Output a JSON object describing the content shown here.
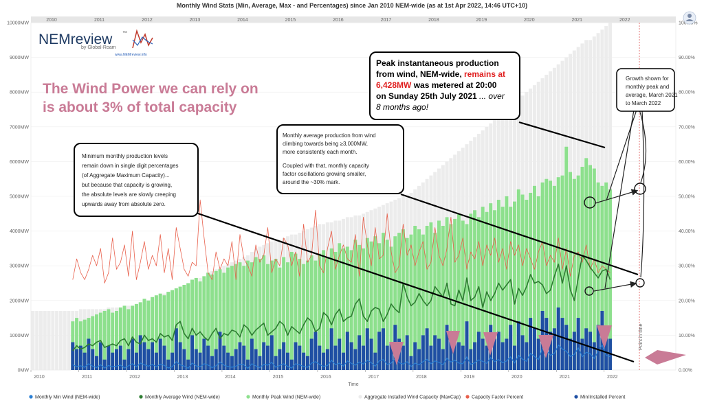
{
  "title": "Monthly Wind Stats (Min, Average, Max - and Percentages) since Jan 2010 NEM-wide (as at 1st Apr 2022, 14:46 UTC+10)",
  "colors": {
    "min": "#2a7fd4",
    "avg": "#2e7d32",
    "peak": "#8de08d",
    "cap": "#ececec",
    "cf": "#e8604c",
    "minpct": "#1f4fa3",
    "callout_border": "#000000",
    "claim": "#c97b96",
    "arrow_pink": "#c97b96",
    "red_text": "#e02020"
  },
  "logo": {
    "brand": "NEMreview",
    "tm": "™",
    "by": "by Global-Roam",
    "link": "www.NEMreview.info"
  },
  "claim": {
    "line1": "The Wind Power we can rely on",
    "line2": "is about 3% of total capacity"
  },
  "callouts": {
    "peak": {
      "l1": "Peak instantaneous production",
      "l2a": "from wind, NEM-wide, ",
      "l2b": "remains at",
      "l3a": "6,428MW",
      "l3b": " was metered at 20:00",
      "l4a": "on Sunday 25th July 2021",
      "l4b": " ... over",
      "l5": "8 months ago!"
    },
    "growth": [
      "Growth shown for",
      "monthly peak and",
      "average, March 2021",
      "to March 2022"
    ],
    "min": [
      "Minimum monthly production levels",
      "remain down in single digit percentages",
      "(of Aggregate Maximum Capacity)...",
      "but because that capacity is growing,",
      "the absolute levels are slowly creeping",
      "upwards away from absolute zero."
    ],
    "avg": [
      "Monthly average production from wind",
      "climbing towards being ≥3,000MW,",
      "more consistently each month.",
      "",
      "Coupled with that, monthly capacity",
      "factor oscillations growing smaller,",
      "around the ~30% mark."
    ]
  },
  "now_label": "Point in time",
  "chart_data": {
    "type": "bar",
    "title": "Monthly Wind Stats (Min, Average, Max - and Percentages) since Jan 2010 NEM-wide (as at 1st Apr 2022, 14:46 UTC+10)",
    "xlabel": "Time",
    "ylabel": "",
    "x_start": "2010-01",
    "x_end": "2023-07",
    "x_ticks": [
      "2010",
      "2011",
      "2012",
      "2013",
      "2014",
      "2015",
      "2016",
      "2017",
      "2018",
      "2019",
      "2020",
      "2021",
      "2022"
    ],
    "ylim": [
      0,
      10000
    ],
    "y_ticks": [
      "0MW",
      "1000MW",
      "2000MW",
      "3000MW",
      "4000MW",
      "5000MW",
      "6000MW",
      "7000MW",
      "8000MW",
      "9000MW",
      "10000MW"
    ],
    "y2lim": [
      0,
      100
    ],
    "y2_ticks": [
      "0.00%",
      "10.00%",
      "20.00%",
      "30.00%",
      "40.00%",
      "50.00%",
      "60.00%",
      "70.00%",
      "80.00%",
      "90.00%",
      "100.00%"
    ],
    "legend_position": "bottom",
    "legend": [
      "Monthly Min Wind (NEM-wide)",
      "Monthly Average Wind (NEM-wide)",
      "Monthly Peak Wind (NEM-wide)",
      "Aggregate Installed Wind Capacity (MaxCap)",
      "Capacity Factor Percent",
      "Min/Installed Percent"
    ],
    "capacity": {
      "start": "2010-01",
      "values": [
        1700,
        1700,
        1700,
        1700,
        1700,
        1700,
        1700,
        1700,
        1700,
        1700,
        1700,
        1700,
        1750,
        1750,
        1750,
        1750,
        1750,
        1750,
        1750,
        1800,
        1800,
        1800,
        1800,
        1800,
        1850,
        1850,
        1900,
        1900,
        1950,
        2000,
        2050,
        2100,
        2150,
        2200,
        2250,
        2300,
        2350,
        2400,
        2450,
        2500,
        2550,
        2600,
        2650,
        2700,
        2800,
        2850,
        2900,
        2950,
        3000,
        3050,
        3100,
        3150,
        3200,
        3250,
        3300,
        3400,
        3500,
        3550,
        3600,
        3650,
        3700,
        3750,
        3750,
        3800,
        3850,
        3900,
        3900,
        3950,
        4000,
        4050,
        4100,
        4150,
        4200,
        4200,
        4250,
        4250,
        4300,
        4300,
        4350,
        4400,
        4400,
        4450,
        4450,
        4500,
        4550,
        4600,
        4650,
        4700,
        4750,
        4800,
        4850,
        4900,
        4950,
        5000,
        5050,
        5100,
        5200,
        5300,
        5400,
        5500,
        5600,
        5700,
        5800,
        5900,
        6000,
        6100,
        6200,
        6300,
        6400,
        6500,
        6600,
        6700,
        6800,
        6900,
        7000,
        7100,
        7200,
        7300,
        7400,
        7500,
        7600,
        7700,
        7800,
        7900,
        8000,
        8100,
        8200,
        8300,
        8400,
        8500,
        8600,
        8700,
        8800,
        8900,
        9000,
        9100,
        9200,
        9300,
        9400,
        9500,
        9500,
        9600,
        9700,
        9800,
        9900,
        10000
      ]
    },
    "peak": {
      "start": "2010-11",
      "values": [
        1400,
        1500,
        1400,
        1450,
        1500,
        1550,
        1600,
        1650,
        1700,
        1750,
        1650,
        1700,
        1800,
        1850,
        1750,
        1850,
        1900,
        1950,
        2050,
        2000,
        2100,
        2150,
        2200,
        2150,
        2250,
        2300,
        2350,
        2400,
        2450,
        2500,
        2600,
        2650,
        2550,
        2700,
        2800,
        2750,
        2850,
        2900,
        2800,
        2950,
        3000,
        3050,
        3100,
        3000,
        3150,
        3100,
        3250,
        3200,
        3300,
        3050,
        3150,
        3200,
        2950,
        3250,
        3100,
        3400,
        3350,
        3200,
        3050,
        3150,
        3300,
        3150,
        3350,
        3450,
        3250,
        3500,
        3400,
        3650,
        3500,
        3550,
        3450,
        3750,
        3600,
        3500,
        3800,
        3700,
        3850,
        3650,
        3950,
        3750,
        3550,
        3850,
        3950,
        4050,
        3800,
        3900,
        4150,
        4050,
        3900,
        4150,
        4250,
        3950,
        4300,
        4150,
        4400,
        4200,
        4350,
        4500,
        4300,
        4200,
        4500,
        4600,
        4400,
        4700,
        4550,
        4800,
        4600,
        4900,
        4700,
        5000,
        4700,
        4850,
        5200,
        5050,
        4900,
        5100,
        5300,
        5000,
        5400,
        5500,
        5450,
        5300,
        5550,
        5600,
        6428,
        5700,
        5500,
        5600,
        5850,
        6100,
        5900,
        5800,
        5400,
        5300,
        5400,
        5200
      ]
    },
    "average": {
      "start": "2010-11",
      "values": [
        550,
        700,
        600,
        650,
        750,
        700,
        800,
        850,
        650,
        700,
        750,
        700,
        850,
        900,
        700,
        950,
        800,
        750,
        1000,
        850,
        900,
        800,
        1050,
        950,
        1000,
        850,
        1300,
        1400,
        1050,
        900,
        1200,
        1000,
        1100,
        950,
        850,
        1050,
        1200,
        900,
        1050,
        1000,
        1150,
        1100,
        950,
        1300,
        1200,
        1000,
        1150,
        1250,
        1350,
        1000,
        1100,
        1200,
        1400,
        1300,
        1000,
        1250,
        1150,
        1050,
        1300,
        1500,
        1400,
        1100,
        1200,
        1650,
        1550,
        1300,
        1600,
        1750,
        1400,
        1500,
        1550,
        1900,
        2050,
        1550,
        1400,
        1700,
        1800,
        1750,
        1400,
        1600,
        1900,
        1750,
        1650,
        2500,
        2100,
        1850,
        1950,
        2200,
        2000,
        1850,
        2000,
        2400,
        2250,
        2100,
        2500,
        1900,
        1850,
        2300,
        2000,
        2650,
        2000,
        2100,
        2400,
        1800,
        2250,
        2000,
        2200,
        2500,
        2300,
        2450,
        2600,
        1900,
        2350,
        2150,
        2400,
        2750,
        2500,
        2550,
        2450,
        2200,
        2300,
        2700,
        3050,
        2500,
        3000,
        2300,
        2000,
        2650,
        3300,
        3150,
        2950,
        2800,
        2650,
        2850,
        2900,
        2600
      ]
    },
    "minimum": {
      "start": "2010-11",
      "values": [
        150,
        100,
        120,
        80,
        180,
        110,
        70,
        150,
        60,
        130,
        90,
        110,
        140,
        60,
        120,
        180,
        90,
        200,
        150,
        110,
        160,
        90,
        170,
        130,
        60,
        90,
        240,
        150,
        110,
        50,
        200,
        120,
        90,
        180,
        140,
        70,
        120,
        230,
        140,
        100,
        80,
        110,
        170,
        150,
        50,
        180,
        120,
        70,
        160,
        140,
        220,
        80,
        130,
        180,
        100,
        60,
        180,
        150,
        100,
        80,
        200,
        240,
        160,
        100,
        130,
        280,
        150,
        200,
        110,
        260,
        190,
        140,
        230,
        170,
        280,
        210,
        110,
        260,
        300,
        160,
        200,
        330,
        210,
        170,
        240,
        100,
        200,
        150,
        240,
        310,
        180,
        260,
        220,
        150,
        340,
        230,
        280,
        200,
        180,
        380,
        160,
        210,
        290,
        250,
        190,
        360,
        240,
        300,
        210,
        260,
        380,
        200,
        420,
        310,
        250,
        480,
        390,
        300,
        620,
        580,
        420,
        480,
        720,
        600,
        540,
        390,
        450,
        640,
        380,
        510,
        470,
        330,
        550,
        720,
        420,
        380
      ]
    },
    "capacity_factor_percent": {
      "start": "2010-11",
      "values": [
        26,
        32,
        28,
        26,
        29,
        33,
        30,
        35,
        25,
        28,
        38,
        29,
        31,
        36,
        27,
        40,
        26,
        31,
        37,
        29,
        33,
        30,
        39,
        28,
        35,
        26,
        41,
        35,
        29,
        27,
        31,
        30,
        49,
        38,
        28,
        26,
        34,
        29,
        32,
        30,
        37,
        26,
        39,
        32,
        30,
        27,
        36,
        31,
        33,
        41,
        28,
        32,
        30,
        38,
        36,
        30,
        34,
        27,
        42,
        31,
        33,
        46,
        30,
        28,
        35,
        40,
        29,
        33,
        36,
        32,
        31,
        39,
        27,
        44,
        36,
        30,
        41,
        32,
        33,
        45,
        34,
        28,
        30,
        42,
        33,
        36,
        30,
        34,
        37,
        29,
        31,
        41,
        33,
        30,
        35,
        44,
        31,
        33,
        38,
        29,
        34,
        32,
        37,
        30,
        36,
        33,
        38,
        31,
        35,
        29,
        37,
        33,
        36,
        30,
        35,
        32,
        29,
        34,
        37,
        30,
        33,
        31,
        38,
        29,
        35,
        27,
        33,
        34,
        31,
        36,
        29,
        32,
        28,
        30,
        29,
        28
      ]
    },
    "min_installed_percent": {
      "start": "2010-11",
      "values": [
        8,
        6,
        7,
        5,
        9,
        6,
        4,
        8,
        3,
        7,
        5,
        6,
        7,
        3,
        6,
        9,
        5,
        10,
        8,
        6,
        8,
        5,
        9,
        7,
        3,
        5,
        12,
        8,
        6,
        3,
        10,
        6,
        5,
        9,
        7,
        4,
        6,
        11,
        7,
        5,
        4,
        6,
        8,
        7,
        3,
        9,
        6,
        4,
        8,
        7,
        10,
        4,
        6,
        8,
        5,
        3,
        8,
        7,
        5,
        4,
        9,
        11,
        7,
        5,
        6,
        12,
        7,
        9,
        5,
        11,
        8,
        6,
        10,
        7,
        12,
        9,
        5,
        11,
        12,
        7,
        8,
        13,
        9,
        7,
        10,
        4,
        8,
        6,
        10,
        12,
        7,
        10,
        9,
        6,
        13,
        9,
        11,
        8,
        7,
        14,
        6,
        8,
        11,
        9,
        7,
        13,
        9,
        11,
        8,
        9,
        13,
        7,
        14,
        10,
        8,
        15,
        12,
        9,
        17,
        15,
        11,
        12,
        18,
        15,
        13,
        9,
        11,
        15,
        9,
        12,
        11,
        8,
        13,
        17,
        10,
        9
      ]
    }
  }
}
